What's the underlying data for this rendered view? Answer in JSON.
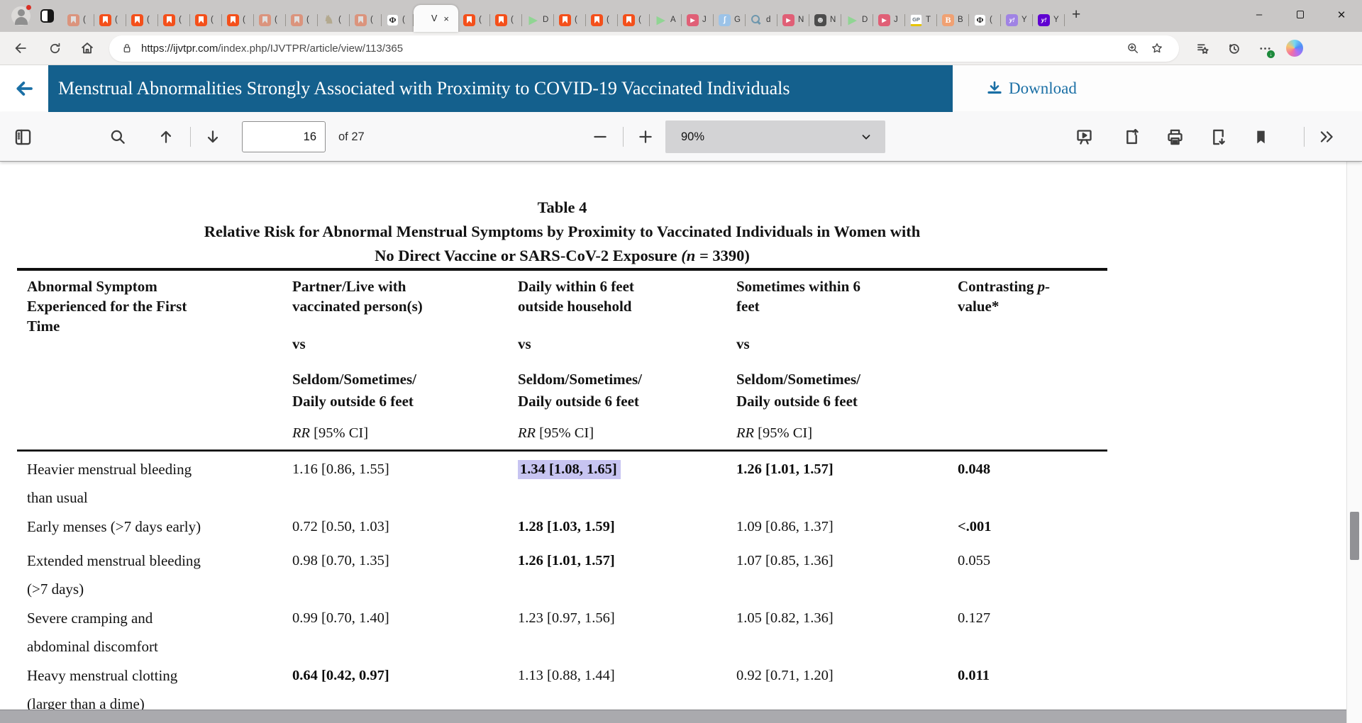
{
  "browser": {
    "tabs": [
      {
        "icon": "bookmark-faded",
        "label": "("
      },
      {
        "icon": "bookmark",
        "label": "("
      },
      {
        "icon": "bookmark",
        "label": "("
      },
      {
        "icon": "bookmark",
        "label": "("
      },
      {
        "icon": "bookmark",
        "label": "("
      },
      {
        "icon": "bookmark",
        "label": "("
      },
      {
        "icon": "bookmark-faded",
        "label": "("
      },
      {
        "icon": "bookmark-faded",
        "label": "("
      },
      {
        "icon": "knight",
        "label": "("
      },
      {
        "icon": "bookmark-faded",
        "label": "("
      },
      {
        "icon": "phi",
        "label": "("
      },
      {
        "icon": "none",
        "label": "V",
        "active": true,
        "close": "×"
      },
      {
        "icon": "bookmark",
        "label": "("
      },
      {
        "icon": "bookmark",
        "label": "("
      },
      {
        "icon": "play",
        "label": "D"
      },
      {
        "icon": "bookmark",
        "label": "("
      },
      {
        "icon": "bookmark",
        "label": "("
      },
      {
        "icon": "bookmark",
        "label": "("
      },
      {
        "icon": "play",
        "label": "A"
      },
      {
        "icon": "youtube",
        "label": "J"
      },
      {
        "icon": "blueapp",
        "label": "G"
      },
      {
        "icon": "search",
        "label": "d"
      },
      {
        "icon": "youtube",
        "label": "N"
      },
      {
        "icon": "face",
        "label": "N"
      },
      {
        "icon": "play",
        "label": "D"
      },
      {
        "icon": "youtube",
        "label": "J"
      },
      {
        "icon": "gp",
        "label": "T"
      },
      {
        "icon": "orangeb",
        "label": "B"
      },
      {
        "icon": "phi",
        "label": "("
      },
      {
        "icon": "yahoo-light",
        "label": "Y"
      },
      {
        "icon": "yahoo-dark",
        "label": "Y"
      }
    ],
    "new_tab_label": "+",
    "url_scheme_host": "https://ijvtpr.com",
    "url_path": "/index.php/IJVTPR/article/view/113/365"
  },
  "pdf_header": {
    "title": "Menstrual Abnormalities Strongly Associated with Proximity to COVID-19 Vaccinated Individuals",
    "download_label": "Download"
  },
  "toolbar": {
    "page_input_value": "16",
    "page_count_label": "of 27",
    "zoom_value": "90%"
  },
  "document": {
    "table": {
      "caption": "Table 4",
      "subtitle_line1": "Relative Risk for Abnormal Menstrual Symptoms by Proximity to Vaccinated Individuals in Women with",
      "subtitle_line2_text": "No Direct Vaccine or SARS-CoV-2 Exposure ",
      "subtitle_line2_italic": "(n = ",
      "subtitle_line2_tail": "3390)",
      "col1_header_lines": [
        "Abnormal Symptom",
        "Experienced for the First",
        "Time"
      ],
      "exposure_columns": [
        {
          "name_lines": [
            "Partner/Live with",
            "vaccinated person(s)"
          ]
        },
        {
          "name_lines": [
            "Daily within 6 feet",
            "outside household"
          ]
        },
        {
          "name_lines": [
            "Sometimes within 6",
            "feet"
          ]
        }
      ],
      "vs_label": "vs",
      "reference_lines": [
        "Seldom/Sometimes/",
        "Daily outside 6 feet"
      ],
      "rr_italic": "RR",
      "rr_rest": " [95% CI]",
      "pvalue_header_prefix": "Contrasting ",
      "pvalue_header_italic": "p-",
      "pvalue_header_line2": "value*",
      "rows": [
        {
          "symptom_lines": [
            "Heavier menstrual bleeding",
            "than usual"
          ],
          "cells": [
            {
              "text": "1.16 [0.86, 1.55]"
            },
            {
              "text": "1.34 [1.08, 1.65]",
              "bold": true,
              "highlight": true
            },
            {
              "text": "1.26 [1.01, 1.57]",
              "bold": true
            }
          ],
          "p": {
            "text": "0.048",
            "bold": true
          }
        },
        {
          "symptom_lines": [
            "Early menses (>7 days early)"
          ],
          "cells": [
            {
              "text": "0.72 [0.50, 1.03]"
            },
            {
              "text": "1.28 [1.03, 1.59]",
              "bold": true
            },
            {
              "text": "1.09 [0.86, 1.37]"
            }
          ],
          "p": {
            "text": "<.001",
            "bold": true
          }
        },
        {
          "symptom_lines": [
            "Extended menstrual bleeding",
            "(>7 days)"
          ],
          "cells": [
            {
              "text": "0.98 [0.70, 1.35]"
            },
            {
              "text": "1.26 [1.01, 1.57]",
              "bold": true
            },
            {
              "text": "1.07 [0.85, 1.36]"
            }
          ],
          "p": {
            "text": "0.055"
          }
        },
        {
          "symptom_lines": [
            "Severe cramping and",
            "abdominal discomfort"
          ],
          "cells": [
            {
              "text": "0.99 [0.70, 1.40]"
            },
            {
              "text": "1.23 [0.97, 1.56]"
            },
            {
              "text": "1.05 [0.82, 1.36]"
            }
          ],
          "p": {
            "text": "0.127"
          }
        },
        {
          "symptom_lines": [
            "Heavy menstrual clotting",
            "(larger than a dime)"
          ],
          "cells": [
            {
              "text": "0.64 [0.42, 0.97]",
              "bold": true
            },
            {
              "text": "1.13 [0.88, 1.44]"
            },
            {
              "text": "0.92 [0.71, 1.20]"
            }
          ],
          "p": {
            "text": "0.011",
            "bold": true
          }
        }
      ]
    },
    "highlight_color": "#c7c4f1",
    "header_blue": "#14608d"
  }
}
